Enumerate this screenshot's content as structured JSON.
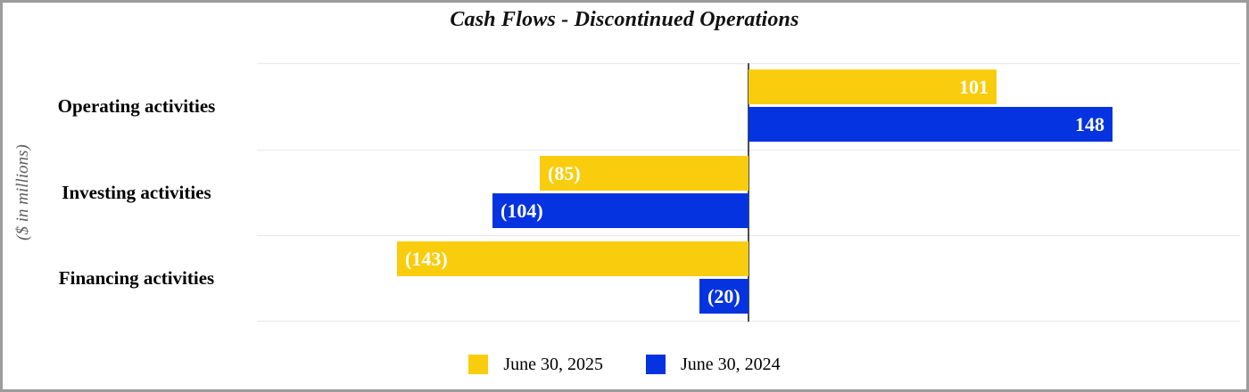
{
  "chart_data": {
    "type": "bar",
    "orientation": "horizontal",
    "title": "Cash Flows - Discontinued Operations",
    "ylabel": "($ in millions)",
    "xlabel": "",
    "categories": [
      "Operating activities",
      "Investing activities",
      "Financing activities"
    ],
    "series": [
      {
        "name": "June 30, 2025",
        "color": "#F9CD0D",
        "values": [
          101,
          -85,
          -143
        ],
        "data_labels": [
          "101",
          "(85)",
          "(143)"
        ]
      },
      {
        "name": "June 30, 2024",
        "color": "#0533E0",
        "values": [
          148,
          -104,
          -20
        ],
        "data_labels": [
          "148",
          "(104)",
          "(20)"
        ]
      }
    ],
    "xlim": [
      -200,
      200
    ],
    "grid": "horizontal category separator lines, light gray",
    "zero_axis_line": true,
    "data_label_color": "#FFFFFF",
    "negative_number_format": "parentheses",
    "legend_position": "bottom-center"
  },
  "frame": {
    "border_color": "#9c9c9c",
    "background": "#ffffff"
  }
}
